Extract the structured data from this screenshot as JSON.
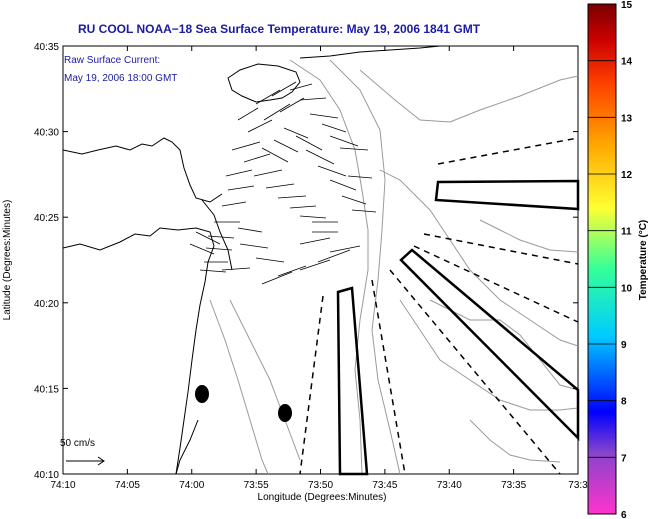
{
  "title": "RU COOL  NOAA−18  Sea Surface Temperature:  May 19, 2006 1841 GMT",
  "annotations": {
    "line1": "Raw Surface Current:",
    "line2": "May 19, 2006 18:00 GMT",
    "scale_label": "50 cm/s"
  },
  "axes": {
    "xlabel": "Longitude (Degrees:Minutes)",
    "ylabel": "Latitude (Degrees:Minutes)",
    "xticks": [
      "74:10",
      "74:05",
      "74:00",
      "73:55",
      "73:50",
      "73:45",
      "73:40",
      "73:35",
      "73:3"
    ],
    "yticks": [
      "40:35",
      "40:30",
      "40:25",
      "40:20",
      "40:15",
      "40:10"
    ]
  },
  "colorbar": {
    "label": "Temperature (°C)",
    "ticks": [
      "15",
      "14",
      "13",
      "12",
      "11",
      "10",
      "9",
      "8",
      "7",
      "6"
    ],
    "colors": [
      "#ff33cc",
      "#6622aa",
      "#0000ff",
      "#00ccff",
      "#33ff99",
      "#ffff33",
      "#ffaa00",
      "#ff5500",
      "#cc0000",
      "#8a0000"
    ]
  }
}
